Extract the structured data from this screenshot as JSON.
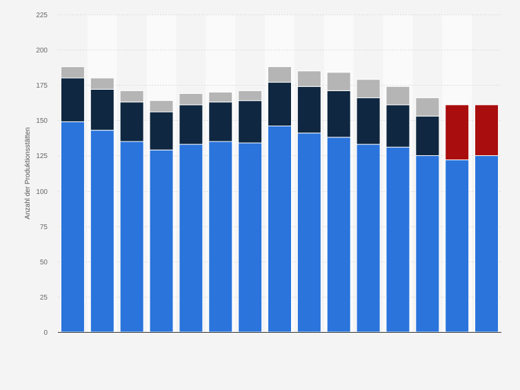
{
  "chart_data": {
    "type": "bar",
    "stacked": true,
    "title": "",
    "xlabel": "",
    "ylabel": "Anzahl der Produktionsstätten",
    "ylim": [
      0,
      225
    ],
    "yticks": [
      0,
      25,
      50,
      75,
      100,
      125,
      150,
      175,
      200,
      225
    ],
    "grid": true,
    "legend": "none",
    "categories": [
      "",
      "",
      "",
      "",
      "",
      "",
      "",
      "",
      "",
      "",
      "",
      "",
      "",
      "",
      ""
    ],
    "series": [
      {
        "color": "#2a74dc",
        "values": [
          149,
          143,
          135,
          129,
          133,
          135,
          134,
          146,
          141,
          138,
          133,
          131,
          125,
          122,
          125
        ]
      },
      {
        "color": "#0f2740",
        "values": [
          31,
          29,
          28,
          27,
          28,
          28,
          30,
          31,
          33,
          33,
          33,
          30,
          28,
          0,
          0
        ]
      },
      {
        "color": "#b5b5b5",
        "values": [
          8,
          8,
          8,
          8,
          8,
          7,
          7,
          11,
          11,
          13,
          13,
          13,
          13,
          0,
          0
        ]
      },
      {
        "color": "#a90d0d",
        "values": [
          0,
          0,
          0,
          0,
          0,
          0,
          0,
          0,
          0,
          0,
          0,
          0,
          0,
          39,
          36
        ]
      }
    ]
  }
}
